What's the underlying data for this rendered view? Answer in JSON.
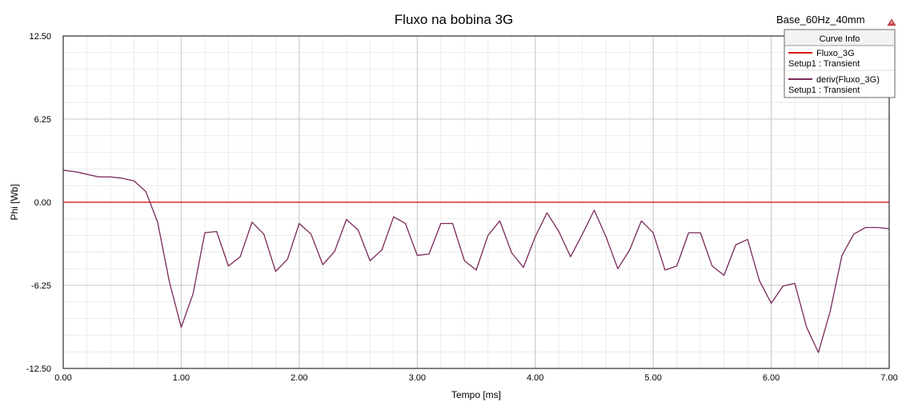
{
  "chart_data": {
    "type": "line",
    "title": "Fluxo na bobina 3G",
    "setup_label": "Base_60Hz_40mm",
    "xlabel": "Tempo [ms]",
    "ylabel": "Phi  [Wb]",
    "xlim": [
      0,
      7
    ],
    "ylim": [
      -12.5,
      12.5
    ],
    "xticks": [
      "0.00",
      "1.00",
      "2.00",
      "3.00",
      "4.00",
      "5.00",
      "6.00",
      "7.00"
    ],
    "yticks": [
      "12.50",
      "6.25",
      "0.00",
      "-6.25",
      "-12.50"
    ],
    "grid": true,
    "legend": {
      "title": "Curve Info",
      "placement": "top-right",
      "entries": [
        {
          "name": "Fluxo_3G",
          "detail": "Setup1 : Transient",
          "color": "#e00000"
        },
        {
          "name": "deriv(Fluxo_3G)",
          "detail": "Setup1 : Transient",
          "color": "#7a2858"
        }
      ]
    },
    "series": [
      {
        "name": "Fluxo_3G",
        "color": "#e00000",
        "x": [
          0,
          7
        ],
        "y": [
          0.0,
          0.0
        ]
      },
      {
        "name": "deriv(Fluxo_3G)",
        "color": "#7a2858",
        "x": [
          0.0,
          0.1,
          0.2,
          0.3,
          0.4,
          0.5,
          0.6,
          0.7,
          0.8,
          0.9,
          1.0,
          1.1,
          1.2,
          1.3,
          1.4,
          1.5,
          1.6,
          1.7,
          1.8,
          1.9,
          2.0,
          2.1,
          2.2,
          2.3,
          2.4,
          2.5,
          2.6,
          2.7,
          2.8,
          2.9,
          3.0,
          3.1,
          3.2,
          3.3,
          3.4,
          3.5,
          3.6,
          3.7,
          3.8,
          3.9,
          4.0,
          4.1,
          4.2,
          4.3,
          4.4,
          4.5,
          4.6,
          4.7,
          4.8,
          4.9,
          5.0,
          5.1,
          5.2,
          5.3,
          5.4,
          5.5,
          5.6,
          5.7,
          5.8,
          5.9,
          6.0,
          6.1,
          6.2,
          6.3,
          6.4,
          6.5,
          6.6,
          6.7,
          6.8,
          6.9,
          7.0
        ],
        "y": [
          2.4,
          2.3,
          2.1,
          1.9,
          1.9,
          1.8,
          1.6,
          0.8,
          -1.5,
          -6.0,
          -9.4,
          -6.9,
          -2.3,
          -2.2,
          -4.8,
          -4.1,
          -1.5,
          -2.4,
          -5.2,
          -4.3,
          -1.6,
          -2.4,
          -4.7,
          -3.7,
          -1.3,
          -2.1,
          -4.4,
          -3.6,
          -1.1,
          -1.6,
          -4.0,
          -3.9,
          -1.6,
          -1.6,
          -4.4,
          -5.1,
          -2.5,
          -1.4,
          -3.8,
          -4.9,
          -2.6,
          -0.8,
          -2.2,
          -4.1,
          -2.4,
          -0.6,
          -2.6,
          -5.0,
          -3.6,
          -1.4,
          -2.3,
          -5.1,
          -4.8,
          -2.3,
          -2.3,
          -4.8,
          -5.5,
          -3.2,
          -2.8,
          -5.9,
          -7.6,
          -6.3,
          -6.1,
          -9.4,
          -11.3,
          -8.2,
          -4.0,
          -2.4,
          -1.9,
          -1.9,
          -2.0
        ]
      }
    ]
  }
}
